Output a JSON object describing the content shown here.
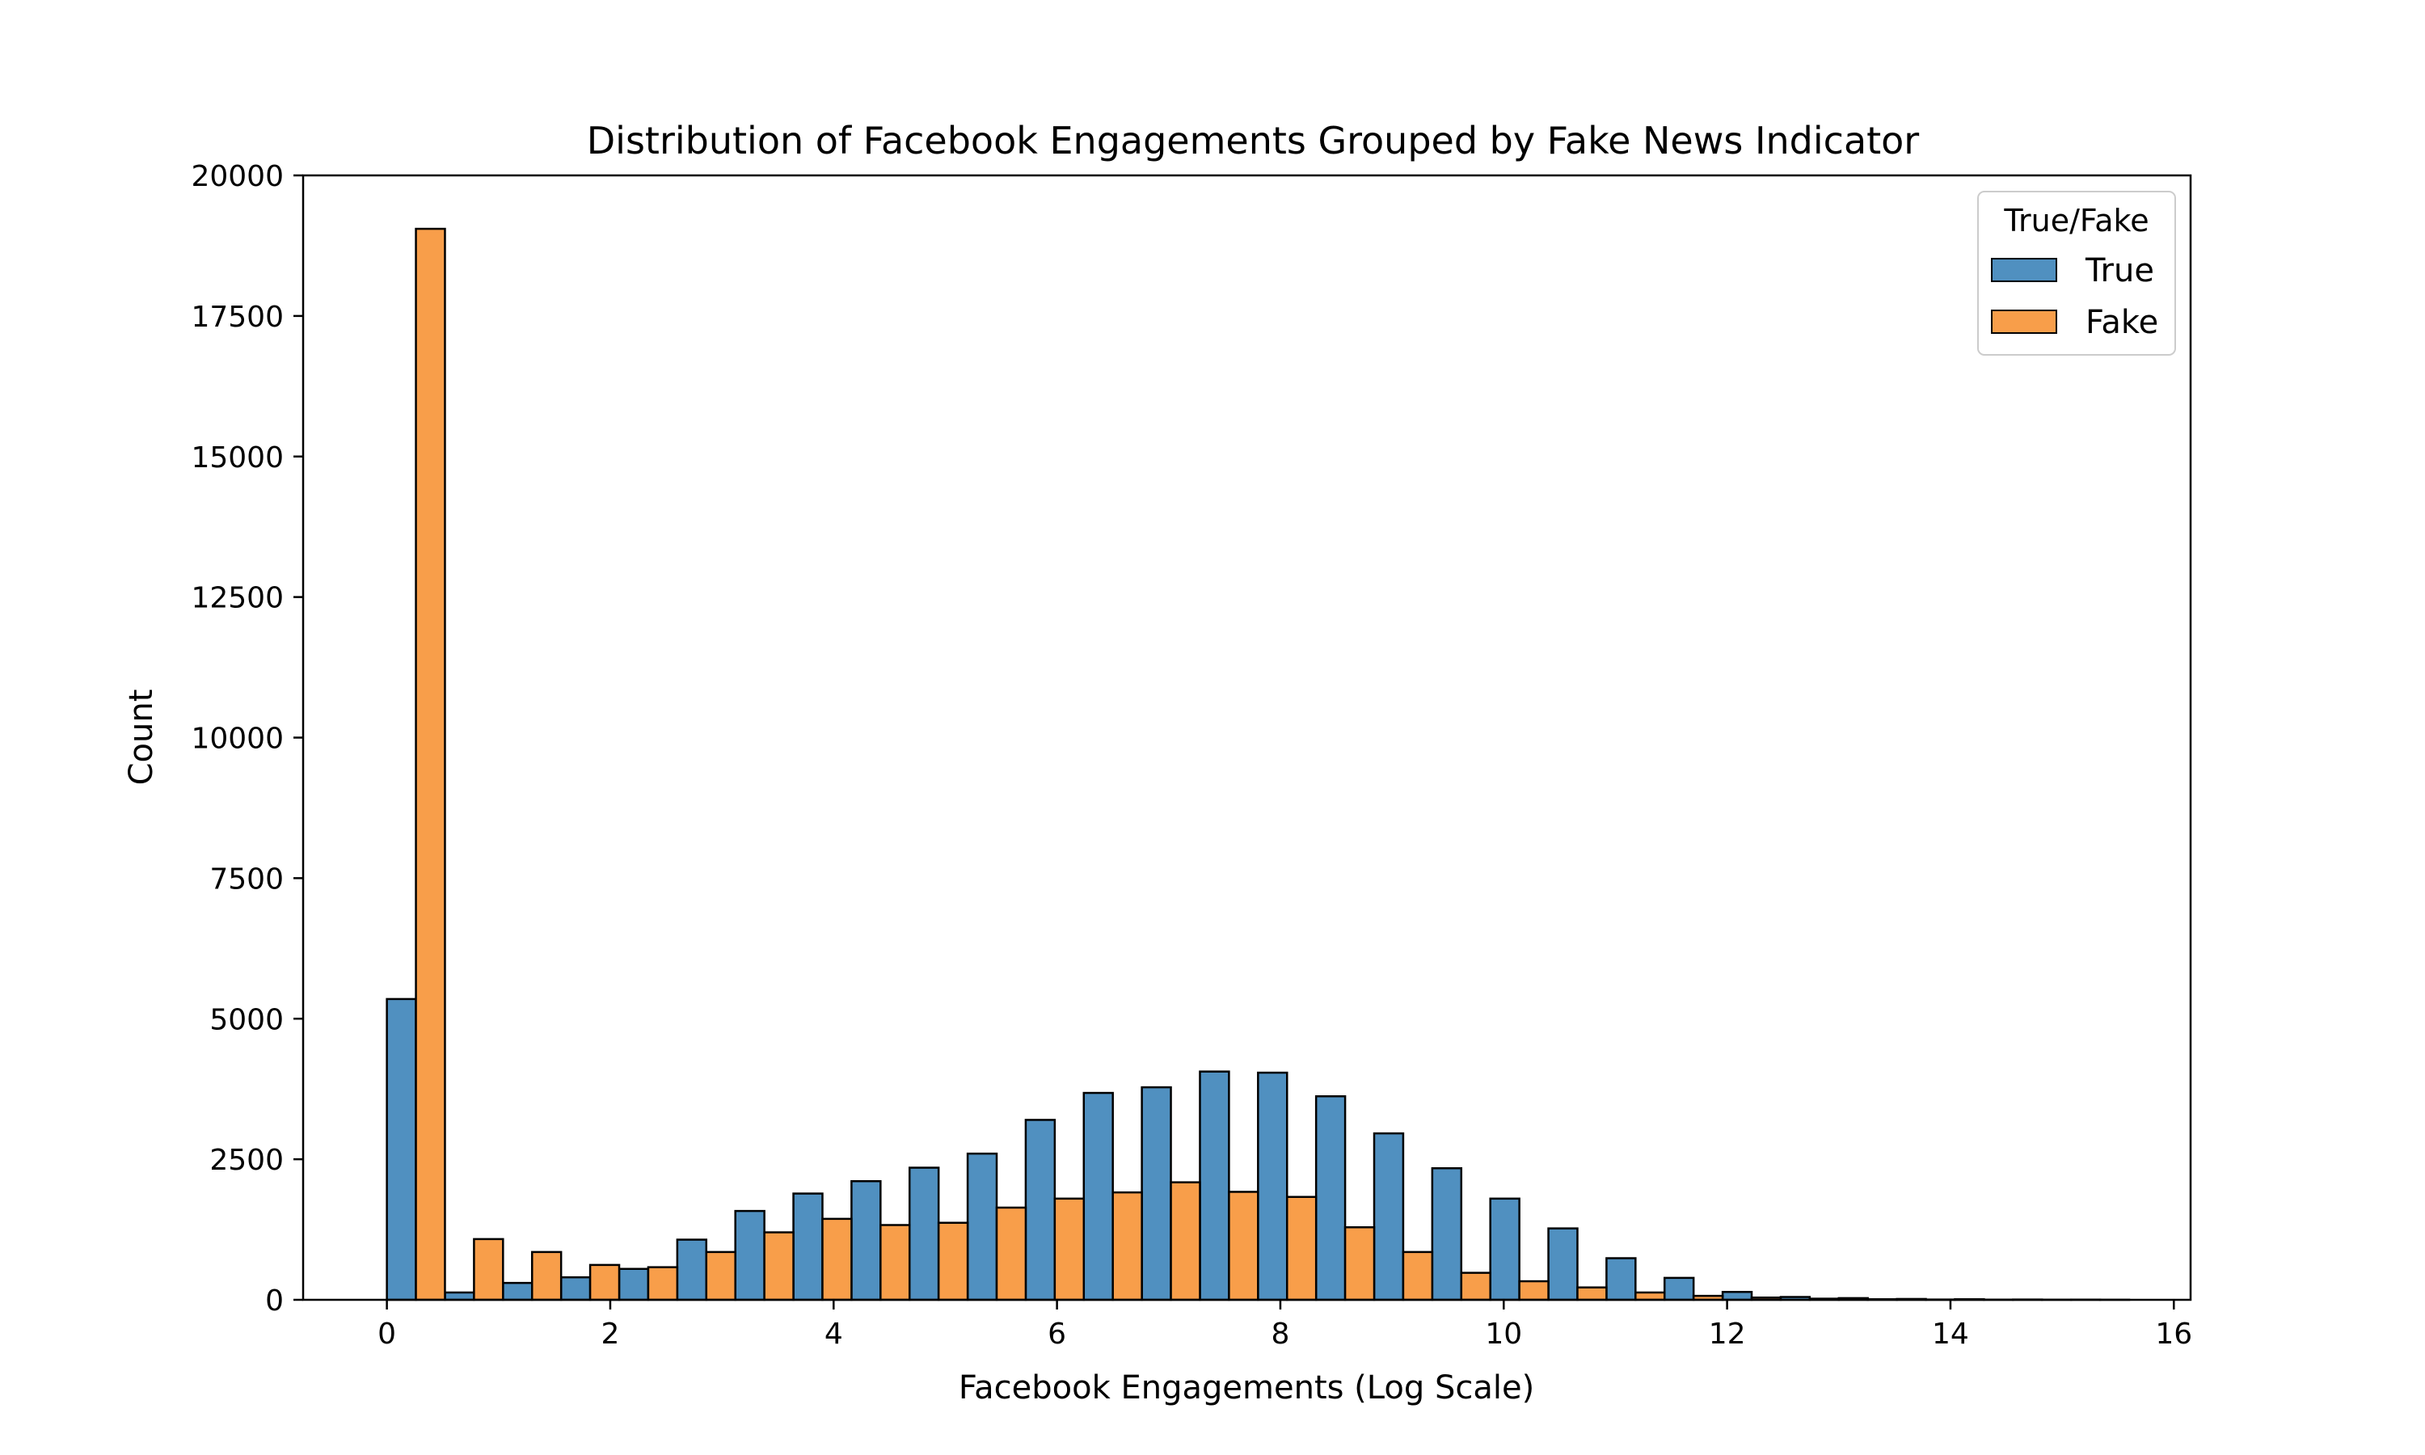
{
  "chart_data": {
    "type": "bar",
    "title": "Distribution of Facebook Engagements Grouped by Fake News Indicator",
    "xlabel": "Facebook Engagements (Log Scale)",
    "ylabel": "Count",
    "xlim": [
      -0.75,
      16.15
    ],
    "ylim": [
      0,
      20000
    ],
    "xticks": [
      0,
      2,
      4,
      6,
      8,
      10,
      12,
      14,
      16
    ],
    "yticks": [
      0,
      2500,
      5000,
      7500,
      10000,
      12500,
      15000,
      17500,
      20000
    ],
    "bin_width": 0.52,
    "bin_starts": [
      0,
      0.52,
      1.04,
      1.56,
      2.08,
      2.6,
      3.12,
      3.64,
      4.16,
      4.68,
      5.2,
      5.72,
      6.24,
      6.76,
      7.28,
      7.8,
      8.32,
      8.84,
      9.36,
      9.88,
      10.4,
      10.92,
      11.44,
      11.96,
      12.48,
      13.0,
      13.52,
      14.04,
      14.56,
      15.08
    ],
    "grid": false,
    "legend_position": "top-right",
    "legend_title": "True/Fake",
    "series": [
      {
        "name": "True",
        "color": "#5090c0",
        "values": [
          5350,
          130,
          300,
          400,
          550,
          1070,
          1580,
          1890,
          2110,
          2350,
          2600,
          3200,
          3680,
          3780,
          4060,
          4040,
          3620,
          2960,
          2340,
          1800,
          1270,
          740,
          390,
          140,
          50,
          30,
          15,
          10,
          5,
          3
        ]
      },
      {
        "name": "Fake",
        "color": "#f89e4a",
        "values": [
          19050,
          1080,
          850,
          620,
          580,
          850,
          1200,
          1440,
          1330,
          1370,
          1640,
          1800,
          1910,
          2090,
          1920,
          1830,
          1290,
          850,
          480,
          330,
          220,
          130,
          70,
          40,
          20,
          10,
          5,
          3,
          2,
          1
        ]
      }
    ]
  }
}
